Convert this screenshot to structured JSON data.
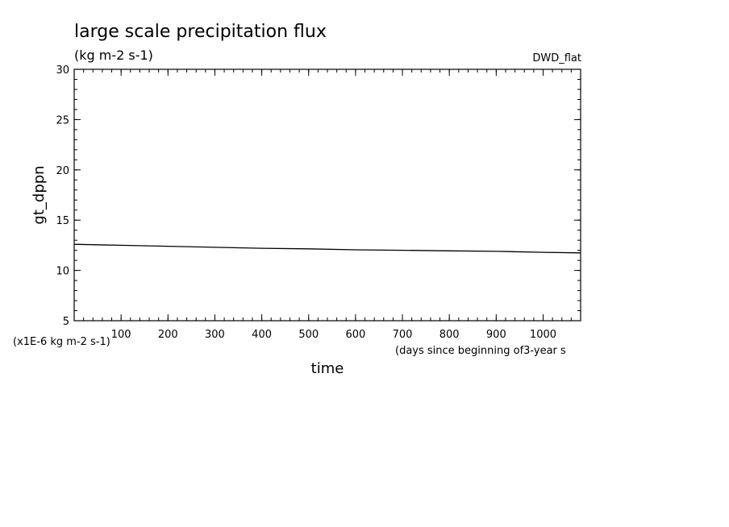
{
  "chart_data": {
    "type": "line",
    "title": "large scale precipitation flux",
    "subtitle": "(kg m-2 s-1)",
    "dataset_label": "DWD_flat",
    "ylabel": "gt_dppn",
    "y_unit_note": "(x1E-6 kg m-2 s-1)",
    "xlabel": "time",
    "x_unit_note": "(days since beginning of3-year s",
    "xlim": [
      0,
      1080
    ],
    "ylim": [
      5,
      30
    ],
    "x_ticks": [
      100,
      200,
      300,
      400,
      500,
      600,
      700,
      800,
      900,
      1000
    ],
    "y_ticks": [
      5,
      10,
      15,
      20,
      25,
      30
    ],
    "grid": false,
    "series": [
      {
        "x": [
          0,
          100,
          200,
          300,
          400,
          500,
          600,
          700,
          800,
          900,
          1000,
          1080
        ],
        "values": [
          12.6,
          12.5,
          12.4,
          12.3,
          12.2,
          12.15,
          12.05,
          12.0,
          11.95,
          11.9,
          11.8,
          11.75
        ]
      }
    ]
  }
}
